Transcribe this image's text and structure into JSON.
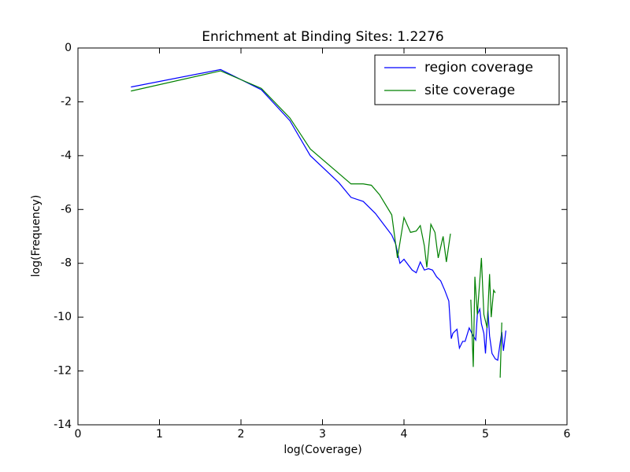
{
  "chart_data": {
    "type": "line",
    "title": "Enrichment at Binding Sites: 1.2276",
    "x_label": "log(Coverage)",
    "y_label": "log(Frequency)",
    "xlim": [
      0,
      6
    ],
    "xticks": [
      0,
      1,
      2,
      3,
      4,
      5,
      6
    ],
    "ylim": [
      -14,
      0
    ],
    "yticks": [
      -14,
      -12,
      -10,
      -8,
      -6,
      -4,
      -2,
      0
    ],
    "legend": "upper right",
    "series": [
      {
        "name": "region coverage",
        "color": "#0000ff",
        "x": [
          0.65,
          1.75,
          2.25,
          2.6,
          2.85,
          3.2,
          3.35,
          3.5,
          3.65,
          3.75,
          3.85,
          3.9,
          3.95,
          4.0,
          4.1,
          4.15,
          4.2,
          4.25,
          4.3,
          4.35,
          4.4,
          4.45,
          4.5,
          4.55,
          4.58,
          4.6,
          4.65,
          4.68,
          4.72,
          4.75,
          4.8,
          4.85,
          4.88,
          4.9,
          4.93,
          4.95,
          4.98,
          5.0,
          5.03,
          5.05,
          5.08,
          5.12,
          5.15,
          5.18,
          5.2,
          5.22,
          5.25
        ],
        "values": [
          -1.45,
          -0.8,
          -1.55,
          -2.7,
          -4.0,
          -5.0,
          -5.55,
          -5.7,
          -6.15,
          -6.55,
          -6.95,
          -7.3,
          -8.0,
          -7.85,
          -8.25,
          -8.35,
          -7.95,
          -8.25,
          -8.2,
          -8.25,
          -8.5,
          -8.65,
          -9.0,
          -9.4,
          -10.8,
          -10.6,
          -10.45,
          -11.15,
          -10.9,
          -10.9,
          -10.4,
          -10.7,
          -10.85,
          -9.9,
          -9.7,
          -10.25,
          -10.6,
          -11.35,
          -9.75,
          -10.7,
          -11.35,
          -11.55,
          -11.6,
          -10.95,
          -10.55,
          -11.25,
          -10.5
        ]
      },
      {
        "name": "site coverage",
        "color": "#008000",
        "x": [
          0.65,
          1.75,
          2.25,
          2.6,
          2.85,
          3.35,
          3.5,
          3.6,
          3.7,
          3.85,
          3.92,
          4.0,
          4.08,
          4.15,
          4.2,
          4.25,
          4.28,
          4.33,
          4.38,
          4.42,
          4.48,
          4.52,
          4.57,
          4.7,
          4.82,
          4.85,
          4.87,
          4.9,
          4.95,
          4.98,
          5.02,
          5.05,
          5.07,
          5.1,
          5.12,
          5.15,
          5.18,
          5.2
        ],
        "values": [
          -1.6,
          -0.85,
          -1.5,
          -2.6,
          -3.75,
          -5.05,
          -5.05,
          -5.1,
          -5.45,
          -6.2,
          -7.8,
          -6.3,
          -6.85,
          -6.8,
          -6.6,
          -7.35,
          -8.15,
          -6.55,
          -6.85,
          -7.8,
          -7.0,
          -7.95,
          -6.9,
          null,
          -9.35,
          -11.85,
          -8.5,
          -9.9,
          -7.8,
          -9.9,
          -10.4,
          -8.4,
          -10.0,
          -9.0,
          -9.1,
          null,
          -12.25,
          -10.2
        ]
      }
    ]
  }
}
